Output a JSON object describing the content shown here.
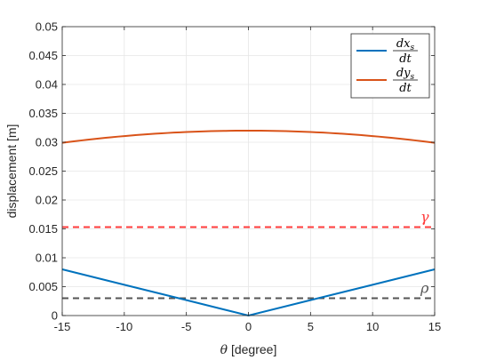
{
  "chart_data": {
    "type": "line",
    "xlabel_symbol": "θ",
    "xlabel_rest": " [degree]",
    "ylabel": "displacement [m]",
    "xlim": [
      -15,
      15
    ],
    "ylim": [
      0,
      0.05
    ],
    "xticks": [
      -15,
      -10,
      -5,
      0,
      5,
      10,
      15
    ],
    "yticks": [
      0,
      0.005,
      0.01,
      0.015,
      0.02,
      0.025,
      0.03,
      0.035,
      0.04,
      0.045,
      0.05
    ],
    "xtick_labels": [
      "-15",
      "-10",
      "-5",
      "0",
      "5",
      "10",
      "15"
    ],
    "ytick_labels": [
      "0",
      "0.005",
      "0.01",
      "0.015",
      "0.02",
      "0.025",
      "0.03",
      "0.035",
      "0.04",
      "0.045",
      "0.05"
    ],
    "grid": true,
    "legend_position": "top-right",
    "series": [
      {
        "legend_num": "dx",
        "legend_sub": "s",
        "legend_den": "dt",
        "color": "#0072bd",
        "style": "solid",
        "x": [
          -15,
          -10,
          -5,
          0,
          5,
          10,
          15
        ],
        "y": [
          0.008,
          0.00533,
          0.00267,
          0.0,
          0.00267,
          0.00533,
          0.008
        ]
      },
      {
        "legend_num": "dy",
        "legend_sub": "s",
        "legend_den": "dt",
        "color": "#d95319",
        "style": "solid",
        "x": [
          -15,
          -10,
          -5,
          0,
          5,
          10,
          15
        ],
        "y": [
          0.0299,
          0.0311,
          0.0318,
          0.032,
          0.0318,
          0.0311,
          0.0299
        ]
      }
    ],
    "reference_lines": [
      {
        "symbol": "γ",
        "y": 0.0153,
        "color": "#ff3b3b",
        "style": "dashed"
      },
      {
        "symbol": "ρ",
        "y": 0.003,
        "color": "#555555",
        "style": "dashed"
      }
    ]
  }
}
